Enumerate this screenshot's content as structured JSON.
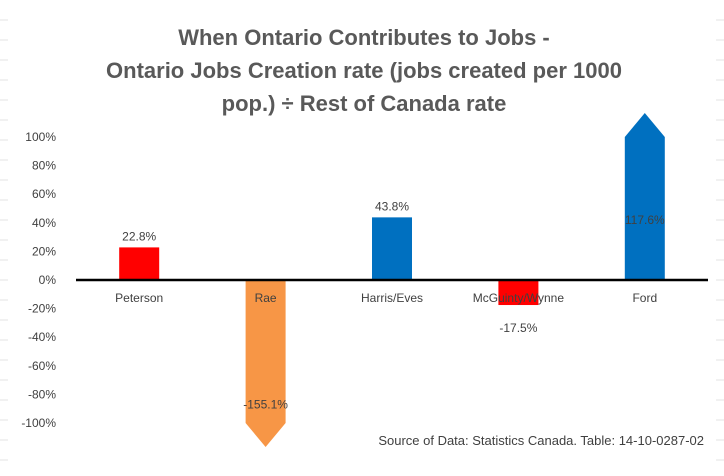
{
  "chart_data": {
    "type": "bar",
    "title_lines": [
      "When Ontario Contributes to Jobs -",
      "Ontario Jobs Creation rate (jobs created per 1000",
      "pop.) ÷ Rest of Canada rate"
    ],
    "categories": [
      "Peterson",
      "Rae",
      "Harris/Eves",
      "McGuinty/Wynne",
      "Ford"
    ],
    "values": [
      22.8,
      -155.1,
      43.8,
      -17.5,
      117.6
    ],
    "data_labels": [
      "22.8%",
      "-155.1%",
      "43.8%",
      "-17.5%",
      "117.6%"
    ],
    "bar_colors": [
      "#ff0000",
      "#f79646",
      "#0070c0",
      "#ff0000",
      "#0070c0"
    ],
    "y_ticks": [
      100,
      80,
      60,
      40,
      20,
      0,
      -20,
      -40,
      -60,
      -80,
      -100
    ],
    "y_tick_labels": [
      "100%",
      "80%",
      "60%",
      "40%",
      "20%",
      "0%",
      "-20%",
      "-40%",
      "-60%",
      "-80%",
      "-100%"
    ],
    "ylim": [
      -100,
      100
    ],
    "clipped_bars": [
      "Rae",
      "Ford"
    ],
    "grid": false,
    "legend": "none",
    "source_note": "Source of Data:  Statistics Canada. Table: 14-10-0287-02"
  }
}
